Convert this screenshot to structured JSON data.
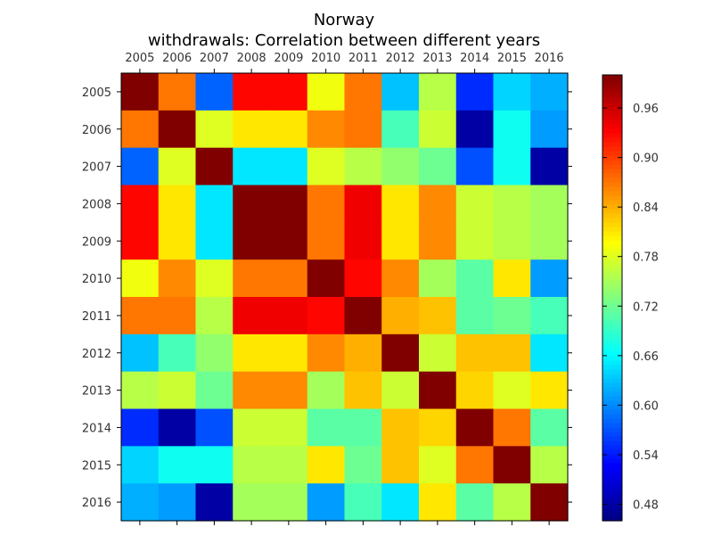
{
  "chart_data": {
    "type": "heatmap",
    "title": "Norway",
    "subtitle": "withdrawals: Correlation between different years",
    "x_categories": [
      "2005",
      "2006",
      "2007",
      "2008",
      "2009",
      "2010",
      "2011",
      "2012",
      "2013",
      "2014",
      "2015",
      "2016"
    ],
    "y_categories": [
      "2005",
      "2006",
      "2007",
      "2008",
      "2009",
      "2010",
      "2011",
      "2012",
      "2013",
      "2014",
      "2015",
      "2016"
    ],
    "colormap": "jet",
    "vmin": 0.46,
    "vmax": 1.0,
    "colorbar_ticks": [
      "0.48",
      "0.54",
      "0.60",
      "0.66",
      "0.72",
      "0.78",
      "0.84",
      "0.90",
      "0.96"
    ],
    "values": [
      [
        1.0,
        0.87,
        0.58,
        0.93,
        0.93,
        0.79,
        0.87,
        0.63,
        0.76,
        0.55,
        0.64,
        0.62
      ],
      [
        0.87,
        1.0,
        0.78,
        0.81,
        0.81,
        0.86,
        0.87,
        0.7,
        0.77,
        0.48,
        0.67,
        0.61
      ],
      [
        0.58,
        0.78,
        1.0,
        0.65,
        0.65,
        0.78,
        0.76,
        0.74,
        0.72,
        0.57,
        0.67,
        0.48
      ],
      [
        0.93,
        0.81,
        0.65,
        1.0,
        1.0,
        0.87,
        0.94,
        0.81,
        0.86,
        0.77,
        0.76,
        0.75
      ],
      [
        0.93,
        0.81,
        0.65,
        1.0,
        1.0,
        0.87,
        0.94,
        0.81,
        0.86,
        0.77,
        0.76,
        0.75
      ],
      [
        0.79,
        0.86,
        0.78,
        0.87,
        0.87,
        1.0,
        0.93,
        0.86,
        0.75,
        0.71,
        0.81,
        0.61
      ],
      [
        0.87,
        0.87,
        0.76,
        0.94,
        0.94,
        0.93,
        1.0,
        0.84,
        0.83,
        0.71,
        0.72,
        0.7
      ],
      [
        0.63,
        0.7,
        0.74,
        0.81,
        0.81,
        0.86,
        0.84,
        1.0,
        0.77,
        0.83,
        0.83,
        0.65
      ],
      [
        0.76,
        0.77,
        0.72,
        0.86,
        0.86,
        0.75,
        0.83,
        0.77,
        1.0,
        0.82,
        0.78,
        0.81
      ],
      [
        0.55,
        0.48,
        0.57,
        0.77,
        0.77,
        0.71,
        0.71,
        0.83,
        0.82,
        1.0,
        0.87,
        0.71
      ],
      [
        0.64,
        0.67,
        0.67,
        0.76,
        0.76,
        0.81,
        0.72,
        0.83,
        0.78,
        0.87,
        1.0,
        0.76
      ],
      [
        0.62,
        0.61,
        0.48,
        0.75,
        0.75,
        0.61,
        0.7,
        0.65,
        0.81,
        0.71,
        0.76,
        1.0
      ]
    ]
  }
}
